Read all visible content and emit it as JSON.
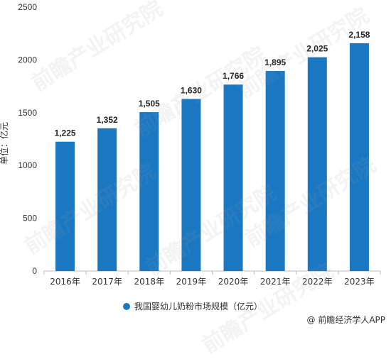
{
  "chart_data": {
    "type": "bar",
    "categories": [
      "2016年",
      "2017年",
      "2018年",
      "2019年",
      "2020年",
      "2021年",
      "2022年",
      "2023年"
    ],
    "series": [
      {
        "name": "我国婴幼儿奶粉市场规模（亿元）",
        "values": [
          1225,
          1352,
          1505,
          1630,
          1766,
          1895,
          2025,
          2158
        ]
      }
    ],
    "data_labels": [
      "1,225",
      "1,352",
      "1,505",
      "1,630",
      "1,766",
      "1,895",
      "2,025",
      "2,158"
    ],
    "ylabel": "单位：亿元",
    "ylim": [
      0,
      2500
    ],
    "yticks": [
      0,
      500,
      1000,
      1500,
      2000,
      2500
    ],
    "ytick_labels": [
      "0",
      "500",
      "1000",
      "1500",
      "2000",
      "2500"
    ],
    "grid": false,
    "legend_position": "bottom",
    "bar_color": "#1a78c2"
  },
  "watermark": "前瞻产业研究院",
  "source": "@ 前瞻经济学人APP"
}
